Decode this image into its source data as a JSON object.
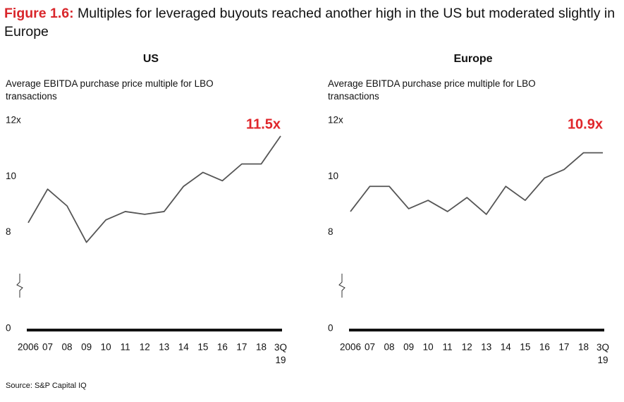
{
  "figure_label": "Figure 1.6:",
  "title": "Multiples for leveraged buyouts reached another high in the US but moderated slightly in Europe",
  "source": "Source: S&P Capital IQ",
  "chart_data": [
    {
      "type": "line",
      "title": "US",
      "subtitle": "Average EBITDA purchase price multiple for LBO transactions",
      "categories": [
        "2006",
        "07",
        "08",
        "09",
        "10",
        "11",
        "12",
        "13",
        "14",
        "15",
        "16",
        "17",
        "18",
        "3Q\n19"
      ],
      "values": [
        8.4,
        9.6,
        9.0,
        7.7,
        8.5,
        8.8,
        8.7,
        8.8,
        9.7,
        10.2,
        9.9,
        10.5,
        10.5,
        11.5
      ],
      "value_labels": [
        null,
        null,
        null,
        null,
        null,
        null,
        null,
        null,
        null,
        null,
        null,
        null,
        null,
        "11.5x"
      ],
      "color": "#555555",
      "label_color": "#e0262b",
      "ylim": [
        0,
        12
      ],
      "y_break": 6,
      "yticks": [
        0,
        8,
        10,
        {
          "value": 12,
          "label": "12x"
        }
      ]
    },
    {
      "type": "line",
      "title": "Europe",
      "subtitle": "Average EBITDA purchase price multiple for LBO transactions",
      "categories": [
        "2006",
        "07",
        "08",
        "09",
        "10",
        "11",
        "12",
        "13",
        "14",
        "15",
        "16",
        "17",
        "18",
        "3Q\n19"
      ],
      "values": [
        8.8,
        9.7,
        9.7,
        8.9,
        9.2,
        8.8,
        9.3,
        8.7,
        9.7,
        9.2,
        10.0,
        10.3,
        10.9,
        10.9
      ],
      "value_labels": [
        null,
        null,
        null,
        null,
        null,
        null,
        null,
        null,
        null,
        null,
        null,
        null,
        null,
        "10.9x"
      ],
      "color": "#555555",
      "label_color": "#e0262b",
      "ylim": [
        0,
        12
      ],
      "y_break": 6,
      "yticks": [
        0,
        8,
        10,
        {
          "value": 12,
          "label": "12x"
        }
      ]
    }
  ]
}
